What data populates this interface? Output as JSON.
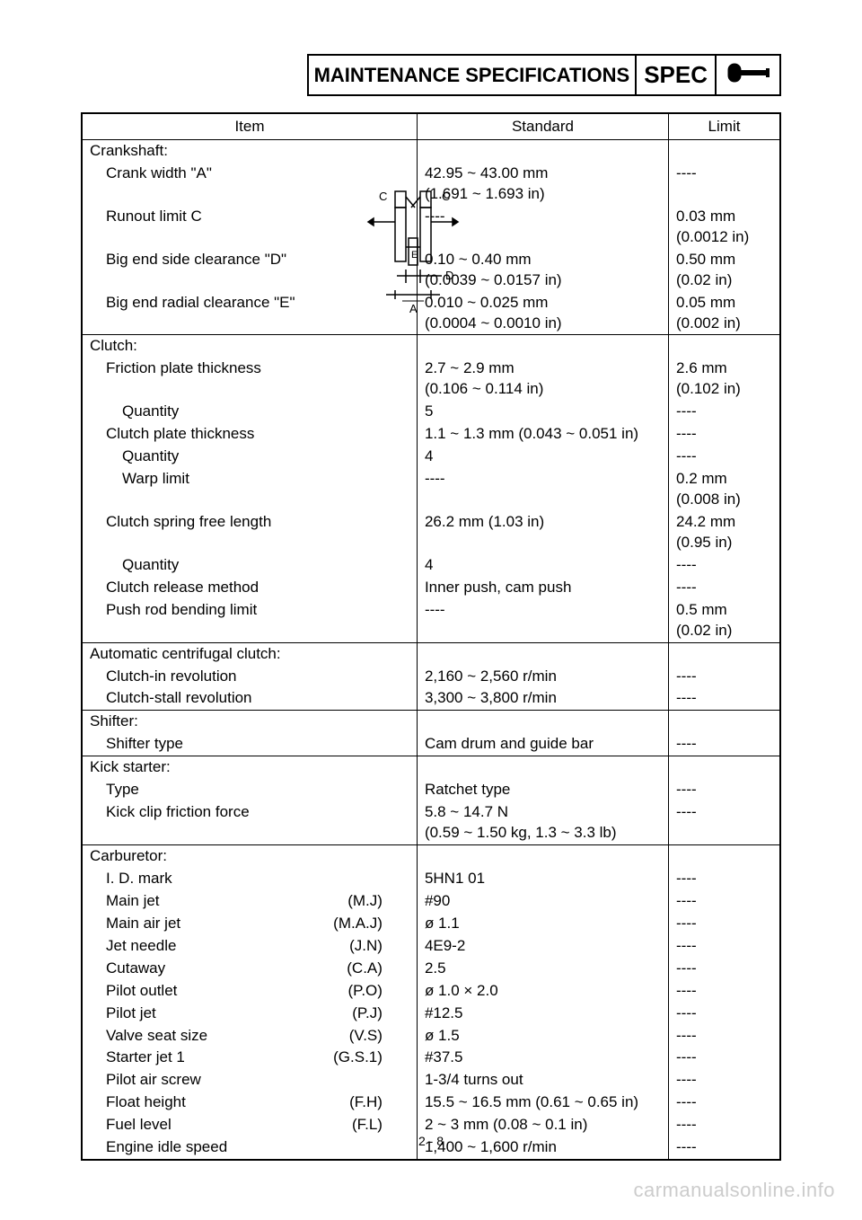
{
  "header": {
    "title": "MAINTENANCE SPECIFICATIONS",
    "spec": "SPEC",
    "icon": "⤵"
  },
  "columns": {
    "item": "Item",
    "standard": "Standard",
    "limit": "Limit"
  },
  "sections": [
    {
      "title": "Crankshaft:",
      "hasDiagram": true,
      "rows": [
        {
          "i": 1,
          "label": "Crank width \"A\"",
          "std": "42.95 ~ 43.00 mm\n(1.691 ~ 1.693 in)",
          "limit": "----"
        },
        {
          "i": 1,
          "label": "Runout limit C",
          "std": "----",
          "limit": "0.03 mm\n(0.0012 in)"
        },
        {
          "i": 1,
          "label": "Big end side clearance \"D\"",
          "std": "0.10 ~ 0.40 mm\n(0.0039 ~ 0.0157 in)",
          "limit": "0.50 mm\n(0.02 in)"
        },
        {
          "i": 1,
          "label": "Big end radial clearance \"E\"",
          "std": "0.010 ~ 0.025 mm\n(0.0004 ~ 0.0010 in)",
          "limit": "0.05 mm\n(0.002 in)"
        }
      ]
    },
    {
      "title": "Clutch:",
      "rows": [
        {
          "i": 1,
          "label": "Friction plate thickness",
          "std": "2.7 ~ 2.9 mm\n(0.106 ~ 0.114 in)",
          "limit": "2.6 mm\n(0.102 in)"
        },
        {
          "i": 2,
          "label": "Quantity",
          "std": "5",
          "limit": "----"
        },
        {
          "i": 1,
          "label": "Clutch plate thickness",
          "std": "1.1 ~ 1.3 mm (0.043 ~ 0.051 in)",
          "limit": "----"
        },
        {
          "i": 2,
          "label": "Quantity",
          "std": "4",
          "limit": "----"
        },
        {
          "i": 2,
          "label": "Warp limit",
          "std": "----",
          "limit": "0.2 mm\n(0.008 in)"
        },
        {
          "i": 1,
          "label": "Clutch spring free length",
          "std": "26.2 mm (1.03 in)",
          "limit": "24.2 mm\n(0.95 in)"
        },
        {
          "i": 2,
          "label": "Quantity",
          "std": "4",
          "limit": "----"
        },
        {
          "i": 1,
          "label": "Clutch release method",
          "std": "Inner push, cam push",
          "limit": "----"
        },
        {
          "i": 1,
          "label": "Push rod bending limit",
          "std": "----",
          "limit": "0.5 mm\n(0.02 in)"
        }
      ]
    },
    {
      "title": "Automatic centrifugal clutch:",
      "rows": [
        {
          "i": 1,
          "label": "Clutch-in revolution",
          "std": "2,160 ~ 2,560 r/min",
          "limit": "----"
        },
        {
          "i": 1,
          "label": "Clutch-stall revolution",
          "std": "3,300 ~ 3,800 r/min",
          "limit": "----"
        }
      ]
    },
    {
      "title": "Shifter:",
      "rows": [
        {
          "i": 1,
          "label": "Shifter type",
          "std": "Cam drum and guide bar",
          "limit": "----"
        }
      ]
    },
    {
      "title": "Kick starter:",
      "rows": [
        {
          "i": 1,
          "label": "Type",
          "std": "Ratchet type",
          "limit": "----"
        },
        {
          "i": 1,
          "label": "Kick clip friction force",
          "std": "5.8 ~ 14.7 N\n(0.59 ~ 1.50 kg, 1.3 ~ 3.3 lb)",
          "limit": "----"
        }
      ]
    },
    {
      "title": "Carburetor:",
      "rows": [
        {
          "i": 1,
          "label": "I. D. mark",
          "std": "5HN1 01",
          "limit": "----"
        },
        {
          "i": 1,
          "label": "Main jet",
          "abbr": "(M.J)",
          "std": "#90",
          "limit": "----"
        },
        {
          "i": 1,
          "label": "Main air jet",
          "abbr": "(M.A.J)",
          "std": "ø 1.1",
          "limit": "----"
        },
        {
          "i": 1,
          "label": "Jet needle",
          "abbr": "(J.N)",
          "std": "4E9-2",
          "limit": "----"
        },
        {
          "i": 1,
          "label": "Cutaway",
          "abbr": "(C.A)",
          "std": "2.5",
          "limit": "----"
        },
        {
          "i": 1,
          "label": "Pilot outlet",
          "abbr": "(P.O)",
          "std": "ø 1.0 × 2.0",
          "limit": "----"
        },
        {
          "i": 1,
          "label": "Pilot jet",
          "abbr": "(P.J)",
          "std": "#12.5",
          "limit": "----"
        },
        {
          "i": 1,
          "label": "Valve seat size",
          "abbr": "(V.S)",
          "std": "ø 1.5",
          "limit": "----"
        },
        {
          "i": 1,
          "label": "Starter jet 1",
          "abbr": "(G.S.1)",
          "std": "#37.5",
          "limit": "----"
        },
        {
          "i": 1,
          "label": "Pilot air screw",
          "std": "1-3/4 turns out",
          "limit": "----"
        },
        {
          "i": 1,
          "label": "Float height",
          "abbr": "(F.H)",
          "std": "15.5 ~ 16.5 mm (0.61 ~ 0.65 in)",
          "limit": "----"
        },
        {
          "i": 1,
          "label": "Fuel level",
          "abbr": "(F.L)",
          "std": "2 ~ 3 mm (0.08 ~ 0.1 in)",
          "limit": "----"
        },
        {
          "i": 1,
          "label": "Engine idle speed",
          "std": "1,400 ~ 1,600 r/min",
          "limit": "----"
        }
      ]
    }
  ],
  "pageNumber": "2 - 8",
  "watermark": "carmanualsonline.info",
  "diagram": {
    "labels": {
      "c": "C",
      "d": "D",
      "e": "E",
      "a": "A"
    }
  }
}
